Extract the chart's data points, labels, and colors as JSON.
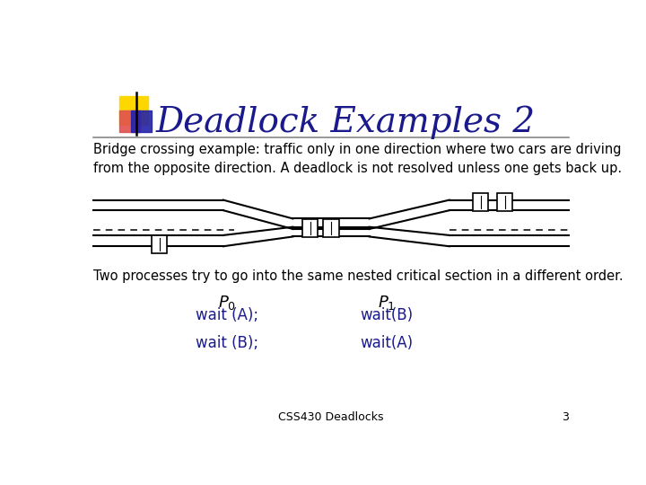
{
  "title": "Deadlock Examples 2",
  "title_color": "#1a1a8c",
  "title_fontsize": 28,
  "bg_color": "#ffffff",
  "body_text1": "Bridge crossing example: traffic only in one direction where two cars are driving\nfrom the opposite direction. A deadlock is not resolved unless one gets back up.",
  "body_text2": "Two processes try to go into the same nested critical section in a different order.",
  "footer_text": "CSS430 Deadlocks",
  "footer_number": "3",
  "p0_label": "$P_0$",
  "p0_code": "wait (A);\nwait (B);",
  "p1_label": "$P_1$",
  "p1_code": "wait(B)\nwait(A)",
  "code_color": "#1a1a8c",
  "accent_yellow": "#FFD700",
  "accent_red": "#e05050",
  "accent_blue": "#2222aa",
  "line_color": "#000000",
  "separator_color": "#888888",
  "body_fontsize": 10.5,
  "body_font": "sans-serif",
  "footer_fontsize": 9,
  "code_fontsize": 12
}
